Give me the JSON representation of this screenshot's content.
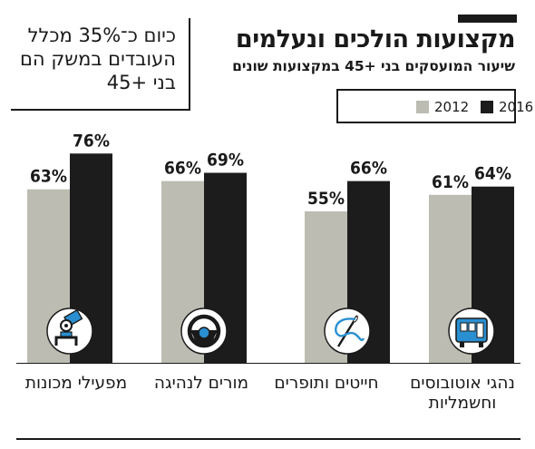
{
  "header": {
    "title": "מקצועות הולכים ונעלמים",
    "subtitle": "שיעור המועסקים בני +45 במקצועות שונים"
  },
  "callout": {
    "text": "כיום כ־35% מכלל העובדים במשק הם בני +45"
  },
  "chart_data": {
    "type": "bar",
    "title": "מקצועות הולכים ונעלמים",
    "subtitle": "שיעור המועסקים בני +45 במקצועות שונים",
    "categories": [
      "נהגי אוטובוסים וחשמליות",
      "חייטים ותופרים",
      "מורים לנהיגה",
      "מפעילי מכונות"
    ],
    "category_icons": [
      "bus-icon",
      "needle-thread-icon",
      "steering-wheel-icon",
      "robotic-arm-icon"
    ],
    "series": [
      {
        "name": "2012",
        "values": [
          61,
          55,
          66,
          63
        ],
        "value_labels": [
          "61%",
          "55%",
          "66%",
          "63%"
        ],
        "color": "#bdbcb2"
      },
      {
        "name": "2016",
        "values": [
          64,
          66,
          69,
          76
        ],
        "value_labels": [
          "64%",
          "66%",
          "69%",
          "76%"
        ],
        "color": "#1c1c1c"
      }
    ],
    "unit": "%",
    "ylim": [
      0,
      100
    ],
    "grid": false,
    "legend_position": "top-right",
    "category_order": "right-to-left"
  }
}
